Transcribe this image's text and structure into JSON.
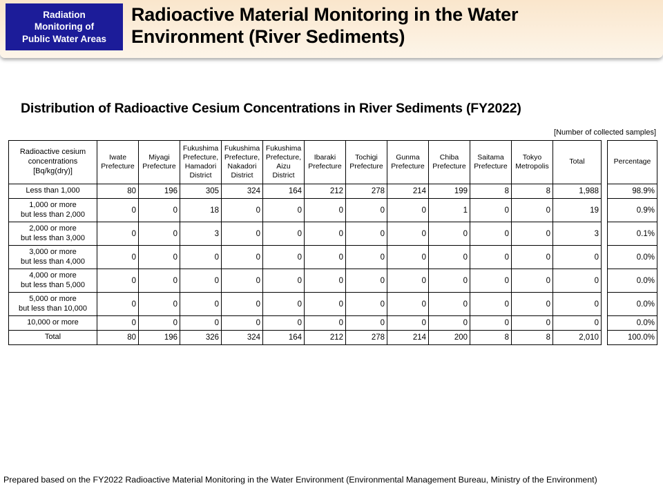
{
  "colors": {
    "badge_bg": "#1C1C99",
    "banner_top": "#FAE6CC",
    "banner_bottom": "#FDF5E9"
  },
  "header": {
    "badge": "Radiation\nMonitoring of\nPublic Water Areas",
    "title": "Radioactive Material Monitoring in the Water\nEnvironment (River Sediments)"
  },
  "content": {
    "subtitle": "Distribution of Radioactive Cesium Concentrations in River Sediments (FY2022)",
    "unit_note": "[Number of collected samples]"
  },
  "table": {
    "corner_header": "Radioactive cesium\nconcentrations\n[Bq/kg(dry)]",
    "column_headers": [
      "Iwate Prefecture",
      "Miyagi Prefecture",
      "Fukushima Prefecture, Hamadori District",
      "Fukushima Prefecture, Nakadori District",
      "Fukushima Prefecture, Aizu District",
      "Ibaraki Prefecture",
      "Tochigi Prefecture",
      "Gunma Prefecture",
      "Chiba Prefecture",
      "Saitama Prefecture",
      "Tokyo Metropolis",
      "Total"
    ],
    "percentage_header": "Percentage",
    "rows": [
      {
        "label": "Less than 1,000",
        "values": [
          "80",
          "196",
          "305",
          "324",
          "164",
          "212",
          "278",
          "214",
          "199",
          "8",
          "8",
          "1,988"
        ],
        "percentage": "98.9%"
      },
      {
        "label": "1,000 or more\nbut less than 2,000",
        "values": [
          "0",
          "0",
          "18",
          "0",
          "0",
          "0",
          "0",
          "0",
          "1",
          "0",
          "0",
          "19"
        ],
        "percentage": "0.9%"
      },
      {
        "label": "2,000 or more\nbut less than 3,000",
        "values": [
          "0",
          "0",
          "3",
          "0",
          "0",
          "0",
          "0",
          "0",
          "0",
          "0",
          "0",
          "3"
        ],
        "percentage": "0.1%"
      },
      {
        "label": "3,000 or more\nbut less than 4,000",
        "values": [
          "0",
          "0",
          "0",
          "0",
          "0",
          "0",
          "0",
          "0",
          "0",
          "0",
          "0",
          "0"
        ],
        "percentage": "0.0%"
      },
      {
        "label": "4,000 or more\nbut less than 5,000",
        "values": [
          "0",
          "0",
          "0",
          "0",
          "0",
          "0",
          "0",
          "0",
          "0",
          "0",
          "0",
          "0"
        ],
        "percentage": "0.0%"
      },
      {
        "label": "5,000 or more\nbut less than 10,000",
        "values": [
          "0",
          "0",
          "0",
          "0",
          "0",
          "0",
          "0",
          "0",
          "0",
          "0",
          "0",
          "0"
        ],
        "percentage": "0.0%"
      },
      {
        "label": "10,000 or more",
        "values": [
          "0",
          "0",
          "0",
          "0",
          "0",
          "0",
          "0",
          "0",
          "0",
          "0",
          "0",
          "0"
        ],
        "percentage": "0.0%"
      },
      {
        "label": "Total",
        "values": [
          "80",
          "196",
          "326",
          "324",
          "164",
          "212",
          "278",
          "214",
          "200",
          "8",
          "8",
          "2,010"
        ],
        "percentage": "100.0%"
      }
    ]
  },
  "footer": {
    "source": "Prepared based on the FY2022 Radioactive Material Monitoring in the Water Environment (Environmental Management Bureau, Ministry of the Environment)"
  }
}
